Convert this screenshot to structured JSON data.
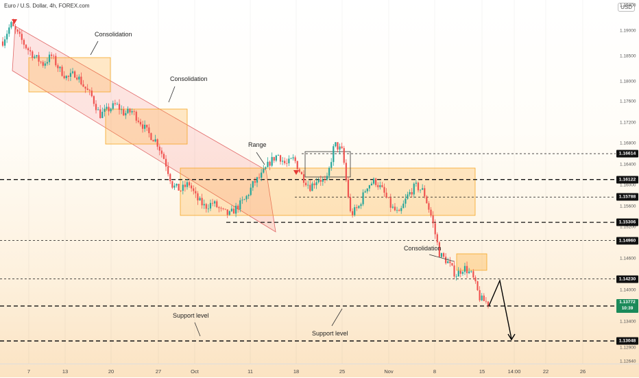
{
  "header": {
    "title": "Euro / U.S. Dollar, 4h, FOREX.com",
    "currency": "USD"
  },
  "annotations": {
    "consolidation_1": "Consolidation",
    "consolidation_2": "Consolidation",
    "range": "Range",
    "consolidation_3": "Consolidation",
    "support_1": "Support level",
    "support_2": "Support level"
  },
  "y_axis_ticks": [
    "1.19000",
    "1.18500",
    "1.18000",
    "1.17600",
    "1.17200",
    "1.16800",
    "1.16400",
    "1.16000",
    "1.15600",
    "1.15200",
    "1.14600",
    "1.14000",
    "1.13400",
    "1.12900",
    "1.12640"
  ],
  "y_axis_top": "1.19400",
  "level_badges": [
    "1.16614",
    "1.16122",
    "1.15788",
    "1.15306",
    "1.14960",
    "1.14230",
    "1.13713",
    "1.13048"
  ],
  "current_price": {
    "value": "1.13772",
    "countdown": "10:39"
  },
  "x_axis_ticks": [
    "7",
    "13",
    "20",
    "27",
    "Oct",
    "11",
    "18",
    "25",
    "Nov",
    "8",
    "15",
    "14:00",
    "22",
    "26"
  ],
  "chart_data": {
    "type": "candlestick",
    "title": "Euro / U.S. Dollar, 4h, FOREX.com",
    "xlabel": "",
    "ylabel": "",
    "ylim": [
      1.1264,
      1.194
    ],
    "levels": [
      1.16614,
      1.16122,
      1.15788,
      1.15306,
      1.1496,
      1.1423,
      1.13713,
      1.13048
    ],
    "last_price": 1.13772,
    "price_path": [
      1.1875,
      1.1908,
      1.1885,
      1.1862,
      1.1845,
      1.1832,
      1.1848,
      1.1822,
      1.1805,
      1.1815,
      1.179,
      1.177,
      1.1735,
      1.1745,
      1.1755,
      1.1738,
      1.1742,
      1.1722,
      1.17,
      1.1685,
      1.165,
      1.16,
      1.1592,
      1.1605,
      1.1575,
      1.156,
      1.1568,
      1.1552,
      1.1545,
      1.156,
      1.1575,
      1.1605,
      1.162,
      1.1645,
      1.166,
      1.164,
      1.1652,
      1.1618,
      1.1598,
      1.1615,
      1.1605,
      1.168,
      1.1665,
      1.1545,
      1.156,
      1.16,
      1.161,
      1.159,
      1.156,
      1.1545,
      1.158,
      1.16,
      1.159,
      1.154,
      1.147,
      1.1455,
      1.143,
      1.1445,
      1.143,
      1.1385,
      1.1377
    ],
    "projection": [
      1.1377,
      1.1428,
      1.1305
    ]
  }
}
